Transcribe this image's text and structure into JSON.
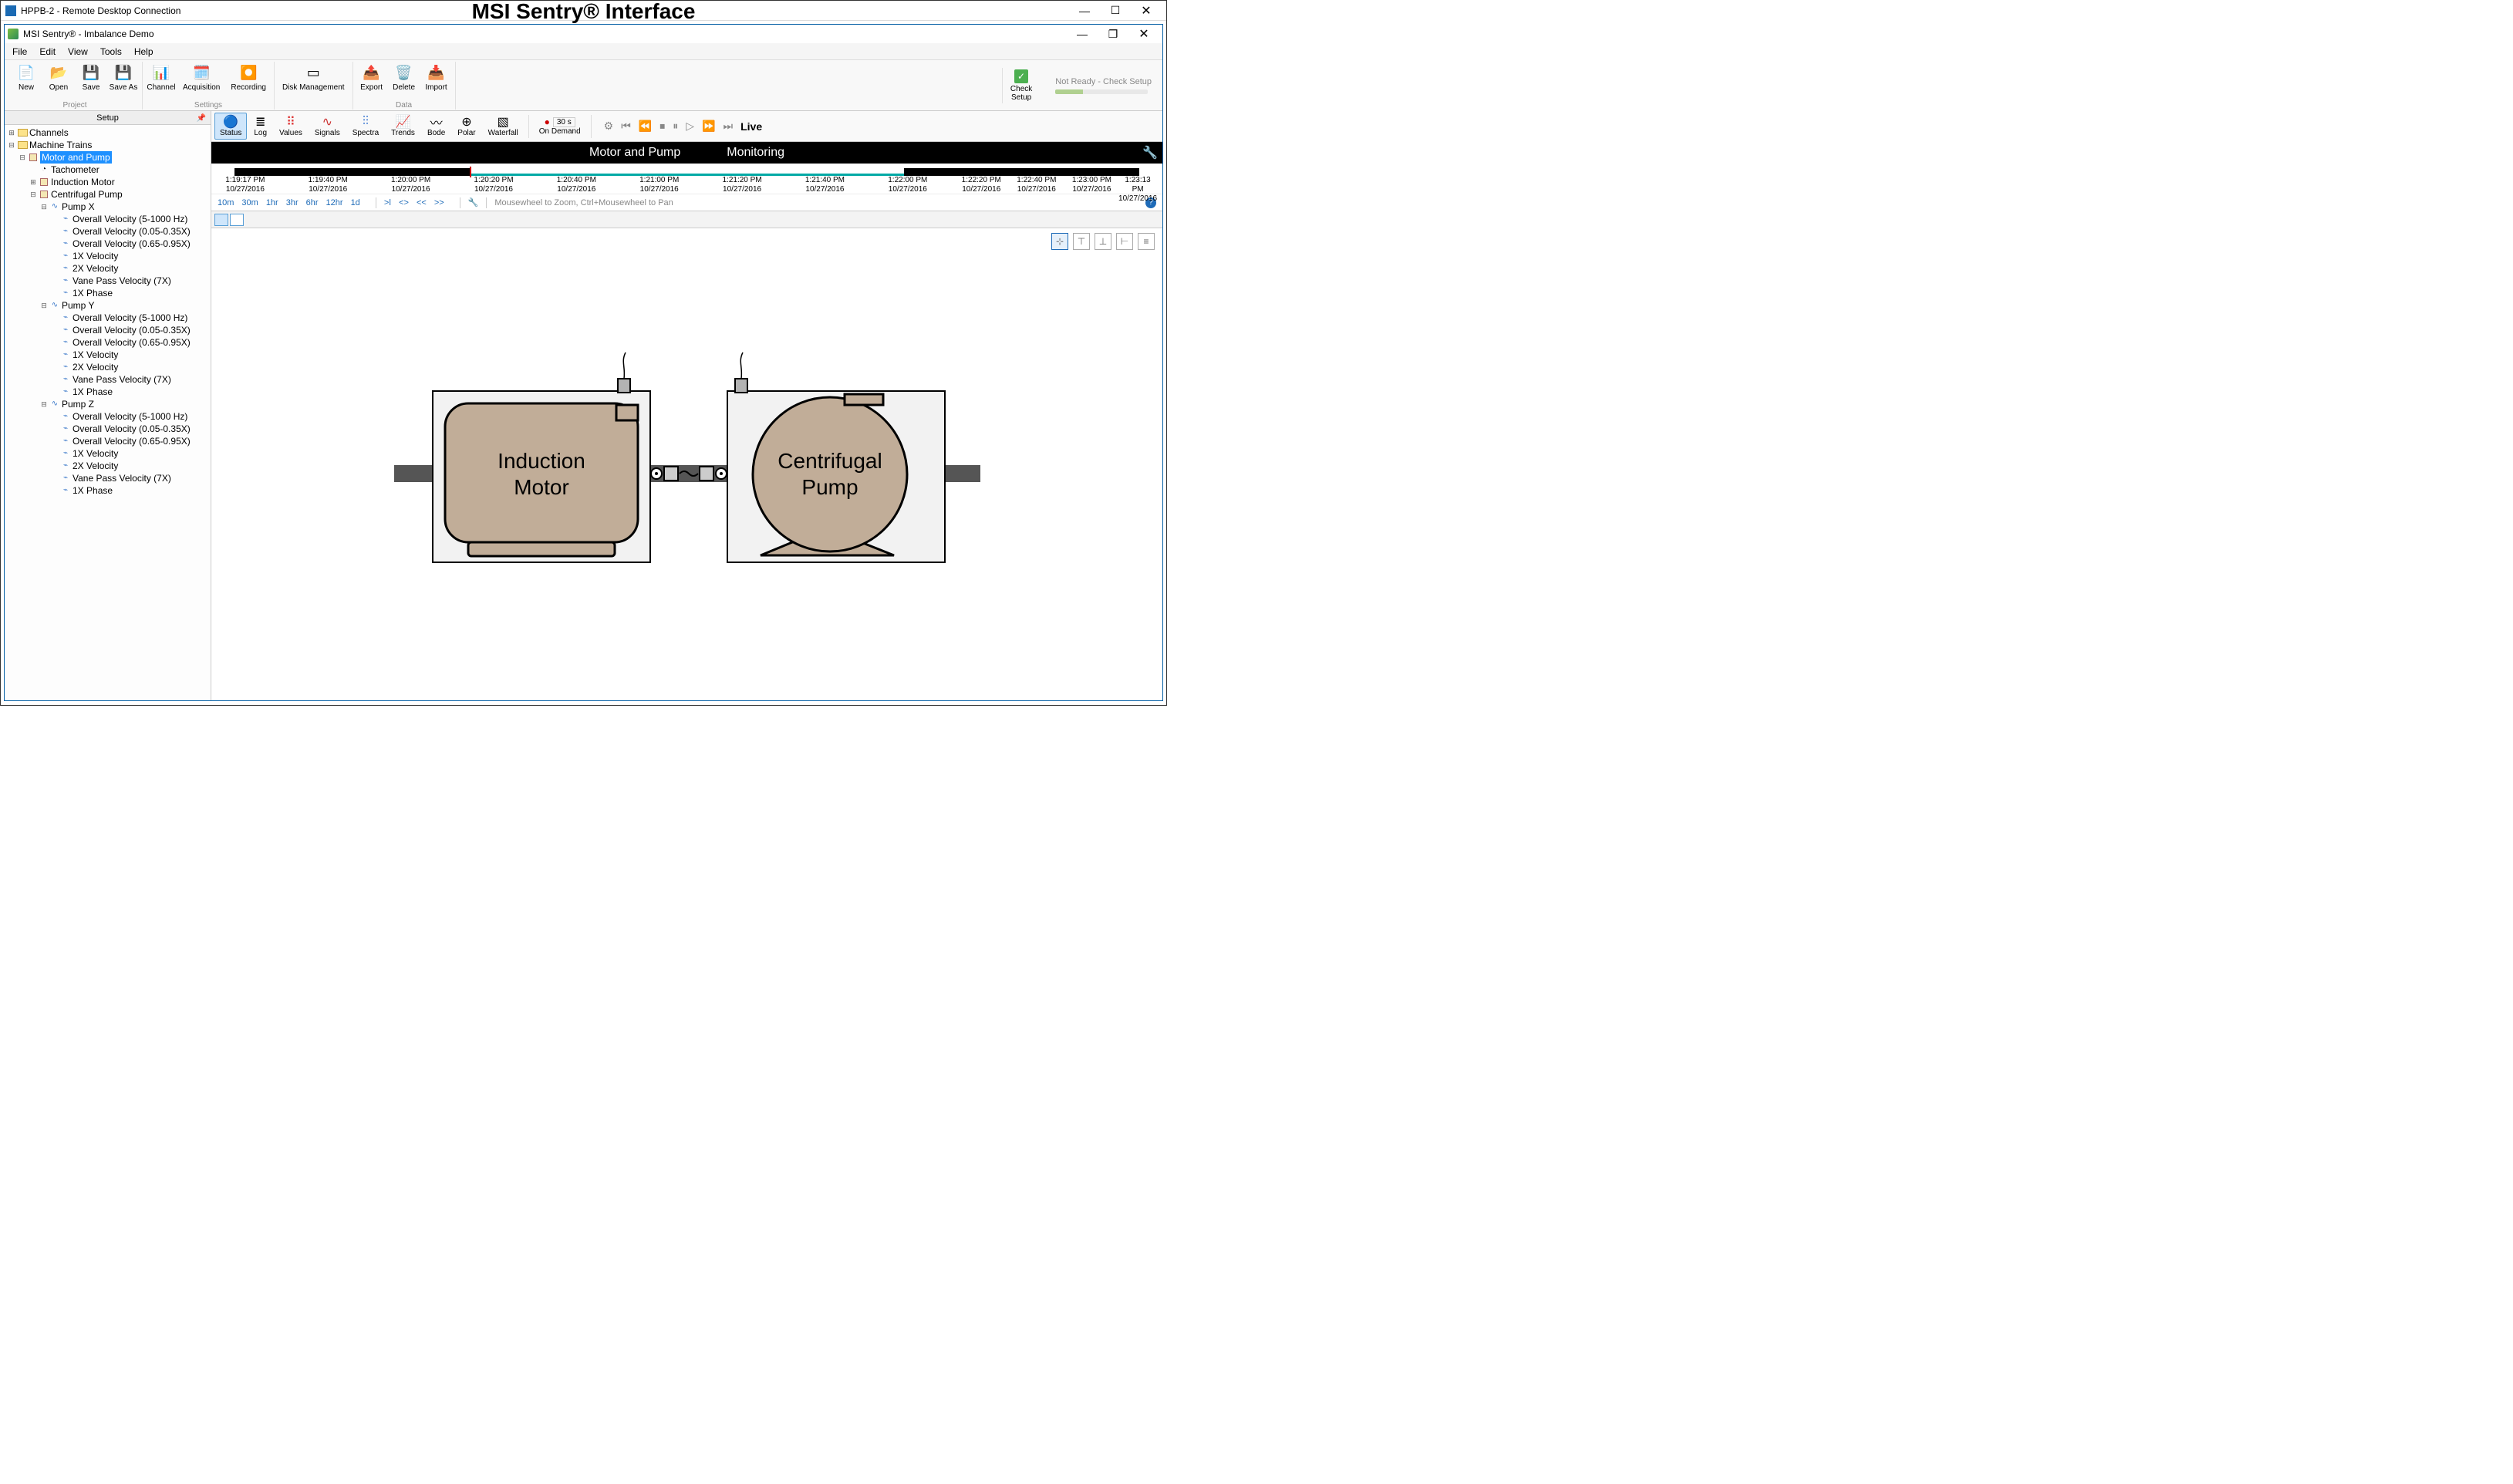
{
  "banner": "MSI Sentry® Interface",
  "rdc": {
    "title": "HPPB-2 - Remote Desktop Connection"
  },
  "app": {
    "title": "MSI Sentry® - Imbalance Demo"
  },
  "menu": [
    "File",
    "Edit",
    "View",
    "Tools",
    "Help"
  ],
  "ribbon": {
    "project": {
      "caption": "Project",
      "items": [
        "New",
        "Open",
        "Save",
        "Save As"
      ]
    },
    "settings": {
      "caption": "Settings",
      "items": [
        "Channel",
        "Acquisition",
        "Recording"
      ]
    },
    "disk": {
      "label": "Disk Management"
    },
    "data": {
      "caption": "Data",
      "items": [
        "Export",
        "Delete",
        "Import"
      ]
    },
    "check_setup": "Check\nSetup",
    "status_text": "Not Ready - Check Setup"
  },
  "sidebar": {
    "title": "Setup",
    "tree": {
      "channels": "Channels",
      "machine_trains": "Machine Trains",
      "motor_pump": "Motor and Pump",
      "tachometer": "Tachometer",
      "induction_motor": "Induction Motor",
      "centrifugal_pump": "Centrifugal Pump",
      "pumps": [
        {
          "name": "Pump X",
          "items": [
            "Overall Velocity (5-1000 Hz)",
            "Overall Velocity (0.05-0.35X)",
            "Overall Velocity (0.65-0.95X)",
            "1X Velocity",
            "2X Velocity",
            "Vane Pass Velocity (7X)",
            "1X Phase"
          ]
        },
        {
          "name": "Pump Y",
          "items": [
            "Overall Velocity (5-1000 Hz)",
            "Overall Velocity (0.05-0.35X)",
            "Overall Velocity (0.65-0.95X)",
            "1X Velocity",
            "2X Velocity",
            "Vane Pass Velocity (7X)",
            "1X Phase"
          ]
        },
        {
          "name": "Pump Z",
          "items": [
            "Overall Velocity (5-1000 Hz)",
            "Overall Velocity (0.05-0.35X)",
            "Overall Velocity (0.65-0.95X)",
            "1X Velocity",
            "2X Velocity",
            "Vane Pass Velocity (7X)",
            "1X Phase"
          ]
        }
      ]
    }
  },
  "toolbar2": {
    "items": [
      "Status",
      "Log",
      "Values",
      "Signals",
      "Spectra",
      "Trends",
      "Bode",
      "Polar",
      "Waterfall"
    ],
    "record": "On Demand",
    "record_time": "30 s",
    "live": "Live"
  },
  "header": {
    "left": "Motor and Pump",
    "right": "Monitoring"
  },
  "timeline": {
    "highlight_start_pct": 26,
    "highlight_end_pct": 74,
    "red_marker_pct": 26,
    "ticks": [
      {
        "p": 2,
        "t": "1:19:17 PM",
        "d": "10/27/2016"
      },
      {
        "p": 11,
        "t": "1:19:40 PM",
        "d": "10/27/2016"
      },
      {
        "p": 20,
        "t": "1:20:00 PM",
        "d": "10/27/2016"
      },
      {
        "p": 29,
        "t": "1:20:20 PM",
        "d": "10/27/2016"
      },
      {
        "p": 38,
        "t": "1:20:40 PM",
        "d": "10/27/2016"
      },
      {
        "p": 47,
        "t": "1:21:00 PM",
        "d": "10/27/2016"
      },
      {
        "p": 56,
        "t": "1:21:20 PM",
        "d": "10/27/2016"
      },
      {
        "p": 65,
        "t": "1:21:40 PM",
        "d": "10/27/2016"
      },
      {
        "p": 74,
        "t": "1:22:00 PM",
        "d": "10/27/2016"
      },
      {
        "p": 82,
        "t": "1:22:20 PM",
        "d": "10/27/2016"
      },
      {
        "p": 88,
        "t": "1:22:40 PM",
        "d": "10/27/2016"
      },
      {
        "p": 94,
        "t": "1:23:00 PM",
        "d": "10/27/2016"
      },
      {
        "p": 99,
        "t": "1:23:13 PM",
        "d": "10/27/2016"
      }
    ]
  },
  "timenav": {
    "ranges": [
      "10m",
      "30m",
      "1hr",
      "3hr",
      "6hr",
      "12hr",
      "1d"
    ],
    "navs": [
      ">ǀ",
      "<>",
      "<<",
      ">>"
    ],
    "hint": "Mousewheel to Zoom, Ctrl+Mousewheel to Pan"
  },
  "diagram": {
    "motor_label_l1": "Induction",
    "motor_label_l2": "Motor",
    "pump_label_l1": "Centrifugal",
    "pump_label_l2": "Pump",
    "colors": {
      "shaft": "#555555",
      "body_fill": "#c1ad98",
      "body_stroke": "#000000",
      "panel_fill": "#f2f2f2",
      "panel_stroke": "#000000",
      "sensor_fill": "#b3b3b3"
    },
    "font_family": "Arial",
    "font_size": 28
  }
}
